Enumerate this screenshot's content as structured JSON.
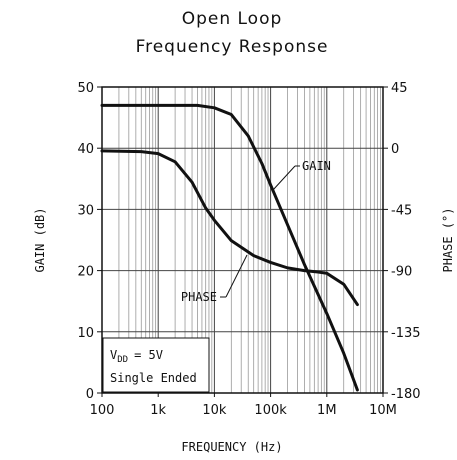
{
  "chart_data": {
    "type": "line",
    "title_line1": "Open Loop",
    "title_line2": "Frequency Response",
    "xlabel": "FREQUENCY (Hz)",
    "ylabel_left": "GAIN (dB)",
    "ylabel_right": "PHASE (°)",
    "x_scale": "log",
    "xlim": [
      100,
      10000000
    ],
    "ylim_left": [
      0,
      50
    ],
    "ylim_right": [
      -180,
      45
    ],
    "x_ticks": [
      {
        "value": 100,
        "label": "100"
      },
      {
        "value": 1000,
        "label": "1k"
      },
      {
        "value": 10000,
        "label": "10k"
      },
      {
        "value": 100000,
        "label": "100k"
      },
      {
        "value": 1000000,
        "label": "1M"
      },
      {
        "value": 10000000,
        "label": "10M"
      }
    ],
    "y_ticks_left": [
      0,
      10,
      20,
      30,
      40,
      50
    ],
    "y_ticks_right": [
      -180,
      -135,
      -90,
      -45,
      0,
      45
    ],
    "grid": true,
    "series": [
      {
        "name": "GAIN",
        "axis": "left",
        "points": [
          [
            100,
            47
          ],
          [
            1000,
            47
          ],
          [
            5000,
            47
          ],
          [
            10000,
            46.6
          ],
          [
            20000,
            45.5
          ],
          [
            40000,
            42
          ],
          [
            70000,
            37.5
          ],
          [
            100000,
            34
          ],
          [
            200000,
            27.5
          ],
          [
            400000,
            21
          ],
          [
            1000000,
            13
          ],
          [
            2000000,
            6.5
          ],
          [
            3500000,
            0.5
          ]
        ]
      },
      {
        "name": "PHASE",
        "axis": "right",
        "points": [
          [
            100,
            -2
          ],
          [
            500,
            -2.5
          ],
          [
            1000,
            -4
          ],
          [
            2000,
            -10
          ],
          [
            4000,
            -25
          ],
          [
            7000,
            -44
          ],
          [
            10000,
            -53
          ],
          [
            20000,
            -68
          ],
          [
            50000,
            -79
          ],
          [
            100000,
            -84
          ],
          [
            200000,
            -88
          ],
          [
            400000,
            -90
          ],
          [
            700000,
            -91
          ],
          [
            1000000,
            -92
          ],
          [
            2000000,
            -100
          ],
          [
            3500000,
            -115
          ]
        ]
      }
    ],
    "annotations": {
      "gain_label": "GAIN",
      "phase_label": "PHASE",
      "vdd_label": "V",
      "vdd_subscript": "DD",
      "vdd_value": "= 5V",
      "mode_label": "Single Ended"
    }
  }
}
